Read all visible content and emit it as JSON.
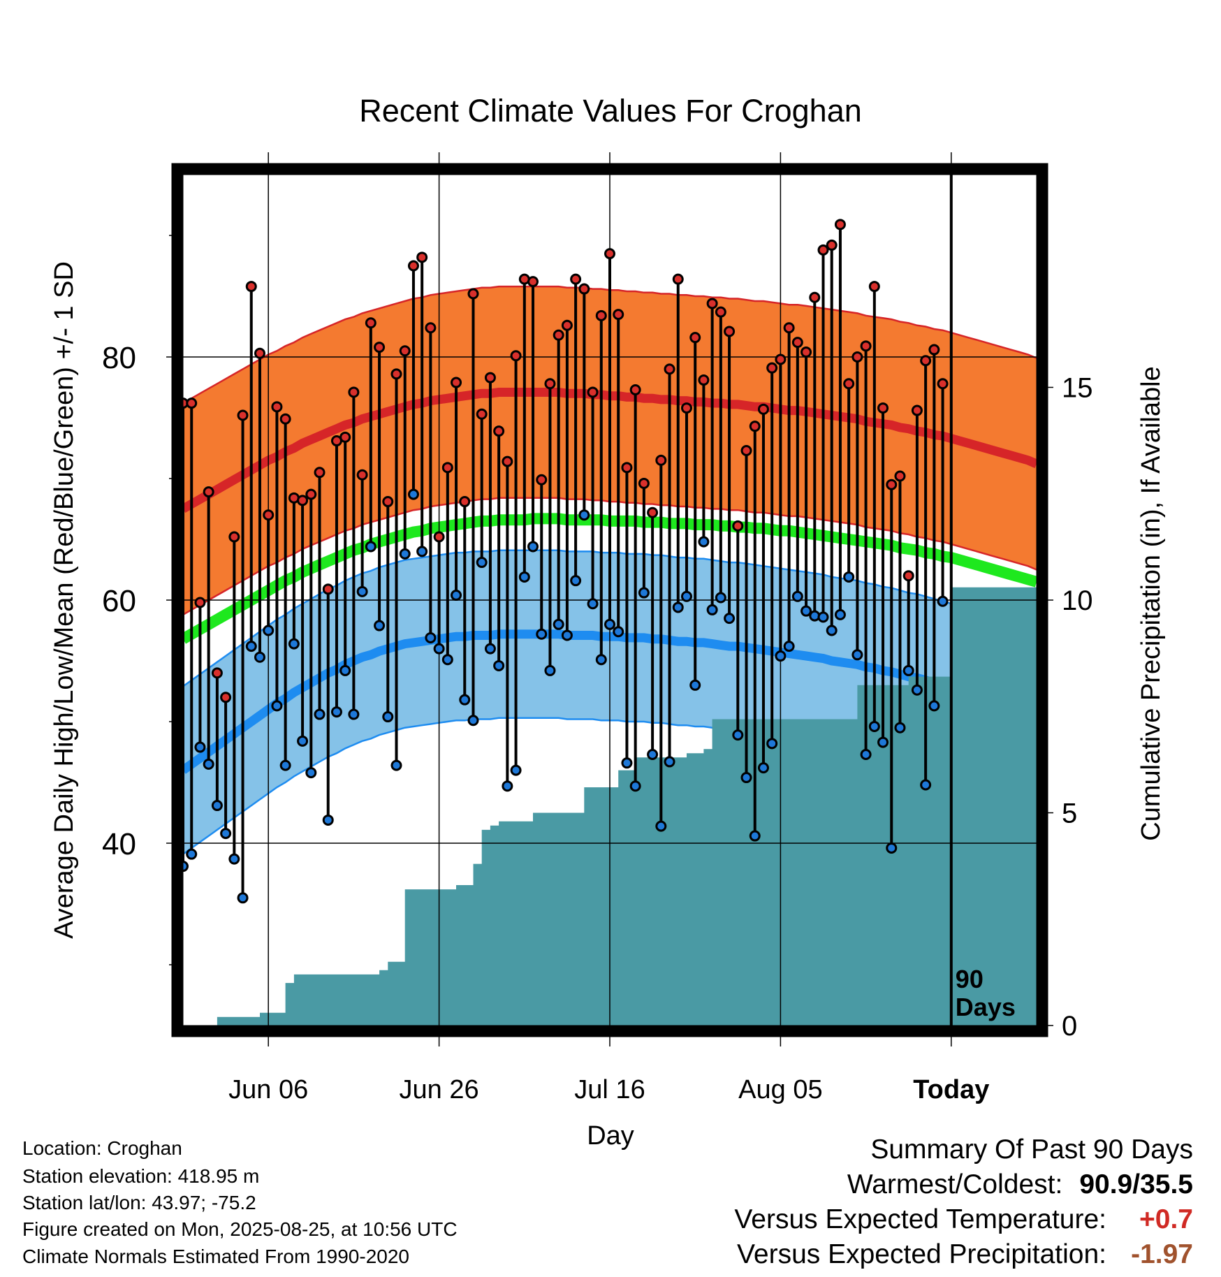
{
  "colors": {
    "high_band": "#f47a30",
    "high_mean": "#d62528",
    "mean_line": "#1ee81e",
    "low_band": "#85c2e8",
    "low_mean": "#1e8cf0",
    "high_dot": "#d9302c",
    "low_dot": "#1e78d8",
    "precip": "#4a9aa4",
    "warm_text": "#d02a24",
    "dry_text": "#a0522d"
  },
  "chart_data": {
    "type": "line",
    "title": "Recent Climate Values For Croghan",
    "xlabel": "Day",
    "ylabel": "Average Daily High/Low/Mean (Red/Blue/Green) +/- 1 SD",
    "y2label": "Cumulative Precipitation (in), If Available",
    "x_ticks": [
      "Jun 06",
      "Jun 26",
      "Jul 16",
      "Aug 05",
      "Today"
    ],
    "x_tick_days": [
      10,
      30,
      50,
      70,
      90
    ],
    "xlim": [
      0,
      100
    ],
    "ylim": [
      25,
      95
    ],
    "y_ticks": [
      40,
      60,
      80
    ],
    "y2lim": [
      0,
      20
    ],
    "y2_ticks": [
      0,
      5,
      10,
      15
    ],
    "today_label": "90 Days",
    "days": [
      0,
      1,
      2,
      3,
      4,
      5,
      6,
      7,
      8,
      9,
      10,
      11,
      12,
      13,
      14,
      15,
      16,
      17,
      18,
      19,
      20,
      21,
      22,
      23,
      24,
      25,
      26,
      27,
      28,
      29,
      30,
      31,
      32,
      33,
      34,
      35,
      36,
      37,
      38,
      39,
      40,
      41,
      42,
      43,
      44,
      45,
      46,
      47,
      48,
      49,
      50,
      51,
      52,
      53,
      54,
      55,
      56,
      57,
      58,
      59,
      60,
      61,
      62,
      63,
      64,
      65,
      66,
      67,
      68,
      69,
      70,
      71,
      72,
      73,
      74,
      75,
      76,
      77,
      78,
      79,
      80,
      81,
      82,
      83,
      84,
      85,
      86,
      87,
      88,
      89,
      90,
      91,
      92,
      93,
      94,
      95,
      96,
      97,
      98,
      99,
      100
    ],
    "normal_high_mean": [
      67.5,
      67.9,
      68.3,
      68.7,
      69.1,
      69.5,
      69.9,
      70.3,
      70.7,
      71.1,
      71.5,
      71.8,
      72.2,
      72.5,
      72.9,
      73.2,
      73.5,
      73.8,
      74.1,
      74.4,
      74.6,
      74.9,
      75.1,
      75.3,
      75.5,
      75.7,
      75.9,
      76.1,
      76.2,
      76.4,
      76.5,
      76.6,
      76.7,
      76.8,
      76.9,
      77.0,
      77.0,
      77.1,
      77.1,
      77.1,
      77.1,
      77.1,
      77.1,
      77.1,
      77.1,
      77.0,
      77.0,
      77.0,
      76.9,
      76.9,
      76.8,
      76.8,
      76.7,
      76.7,
      76.6,
      76.6,
      76.5,
      76.5,
      76.4,
      76.4,
      76.3,
      76.3,
      76.2,
      76.2,
      76.1,
      76.1,
      76.0,
      75.9,
      75.9,
      75.8,
      75.7,
      75.6,
      75.6,
      75.5,
      75.4,
      75.3,
      75.2,
      75.1,
      75.0,
      74.9,
      74.7,
      74.6,
      74.5,
      74.4,
      74.2,
      74.1,
      73.9,
      73.8,
      73.6,
      73.5,
      73.3,
      73.1,
      72.9,
      72.7,
      72.5,
      72.3,
      72.1,
      71.9,
      71.7,
      71.5,
      71.2
    ],
    "normal_high_sd": [
      8.7,
      8.7,
      8.7,
      8.7,
      8.7,
      8.7,
      8.7,
      8.7,
      8.7,
      8.7,
      8.7,
      8.7,
      8.7,
      8.7,
      8.7,
      8.7,
      8.7,
      8.7,
      8.7,
      8.7,
      8.7,
      8.7,
      8.7,
      8.7,
      8.7,
      8.7,
      8.7,
      8.7,
      8.7,
      8.7,
      8.7,
      8.7,
      8.7,
      8.7,
      8.7,
      8.7,
      8.7,
      8.7,
      8.7,
      8.7,
      8.7,
      8.7,
      8.7,
      8.7,
      8.7,
      8.7,
      8.7,
      8.7,
      8.7,
      8.7,
      8.7,
      8.7,
      8.7,
      8.7,
      8.7,
      8.7,
      8.7,
      8.7,
      8.7,
      8.7,
      8.7,
      8.7,
      8.7,
      8.7,
      8.7,
      8.7,
      8.7,
      8.7,
      8.7,
      8.7,
      8.7,
      8.7,
      8.7,
      8.7,
      8.7,
      8.7,
      8.7,
      8.7,
      8.7,
      8.7,
      8.7,
      8.7,
      8.7,
      8.7,
      8.7,
      8.7,
      8.7,
      8.7,
      8.7,
      8.7,
      8.7,
      8.7,
      8.7,
      8.7,
      8.7,
      8.7,
      8.7,
      8.7,
      8.7,
      8.7,
      8.7
    ],
    "normal_mean": [
      56.8,
      57.2,
      57.6,
      58.0,
      58.4,
      58.8,
      59.2,
      59.6,
      60.0,
      60.4,
      60.8,
      61.2,
      61.6,
      61.9,
      62.3,
      62.6,
      62.9,
      63.2,
      63.5,
      63.8,
      64.1,
      64.3,
      64.6,
      64.8,
      65.0,
      65.2,
      65.4,
      65.6,
      65.7,
      65.9,
      66.0,
      66.1,
      66.2,
      66.3,
      66.4,
      66.5,
      66.5,
      66.6,
      66.6,
      66.6,
      66.6,
      66.7,
      66.7,
      66.7,
      66.7,
      66.6,
      66.6,
      66.6,
      66.6,
      66.6,
      66.5,
      66.5,
      66.5,
      66.5,
      66.4,
      66.4,
      66.4,
      66.3,
      66.3,
      66.3,
      66.2,
      66.2,
      66.2,
      66.1,
      66.1,
      66.0,
      66.0,
      65.9,
      65.9,
      65.8,
      65.7,
      65.7,
      65.6,
      65.5,
      65.4,
      65.3,
      65.2,
      65.1,
      65.0,
      64.9,
      64.8,
      64.7,
      64.6,
      64.5,
      64.3,
      64.2,
      64.1,
      63.9,
      63.8,
      63.6,
      63.5,
      63.3,
      63.1,
      62.9,
      62.7,
      62.5,
      62.3,
      62.1,
      61.9,
      61.7,
      61.5
    ],
    "normal_low_mean": [
      46.0,
      46.5,
      47.0,
      47.5,
      48.0,
      48.5,
      49.0,
      49.5,
      50.0,
      50.5,
      51.0,
      51.5,
      51.9,
      52.4,
      52.8,
      53.2,
      53.6,
      54.0,
      54.3,
      54.7,
      55.0,
      55.3,
      55.5,
      55.8,
      56.0,
      56.2,
      56.4,
      56.5,
      56.6,
      56.7,
      56.8,
      56.9,
      57.0,
      57.0,
      57.1,
      57.1,
      57.1,
      57.2,
      57.2,
      57.2,
      57.2,
      57.2,
      57.2,
      57.2,
      57.2,
      57.1,
      57.1,
      57.1,
      57.1,
      57.0,
      57.0,
      57.0,
      56.9,
      56.9,
      56.9,
      56.8,
      56.8,
      56.7,
      56.6,
      56.6,
      56.5,
      56.5,
      56.4,
      56.3,
      56.2,
      56.2,
      56.1,
      56.0,
      55.9,
      55.8,
      55.7,
      55.6,
      55.5,
      55.4,
      55.3,
      55.2,
      55.0,
      54.9,
      54.8,
      54.7,
      54.5,
      54.4,
      54.2,
      54.1,
      53.9,
      53.7,
      53.6,
      53.4,
      53.2,
      53.0,
      52.8,
      52.6,
      52.4,
      52.2,
      52.0,
      51.8,
      51.6,
      51.4,
      51.2,
      51.0,
      50.8
    ],
    "normal_low_sd": [
      6.9,
      6.9,
      6.9,
      6.9,
      6.9,
      6.9,
      6.9,
      6.9,
      6.9,
      6.9,
      6.9,
      6.9,
      6.9,
      6.9,
      6.9,
      6.9,
      6.9,
      6.9,
      6.9,
      6.9,
      6.9,
      6.9,
      6.9,
      6.9,
      6.9,
      6.9,
      6.9,
      6.9,
      6.9,
      6.9,
      6.9,
      6.9,
      6.9,
      6.9,
      6.9,
      6.9,
      6.9,
      6.9,
      6.9,
      6.9,
      6.9,
      6.9,
      6.9,
      6.9,
      6.9,
      6.9,
      6.9,
      6.9,
      6.9,
      6.9,
      6.9,
      6.9,
      6.9,
      6.9,
      6.9,
      6.9,
      6.9,
      6.9,
      6.9,
      6.9,
      6.9,
      6.9,
      6.9,
      6.9,
      6.9,
      6.9,
      6.9,
      6.9,
      6.9,
      6.9,
      6.9,
      6.9,
      6.9,
      6.9,
      6.9,
      6.9,
      6.9,
      6.9,
      6.9,
      6.9,
      6.9,
      6.9,
      6.9,
      6.9,
      6.9,
      6.9,
      6.9,
      6.9,
      6.9,
      6.9,
      6.9,
      6.9,
      6.9,
      6.9,
      6.9,
      6.9,
      6.9,
      6.9,
      6.9,
      6.9,
      6.9
    ],
    "obs_days": [
      0,
      1,
      2,
      3,
      4,
      5,
      6,
      7,
      8,
      9,
      10,
      11,
      12,
      13,
      14,
      15,
      16,
      17,
      18,
      19,
      20,
      21,
      22,
      23,
      24,
      25,
      26,
      27,
      28,
      29,
      30,
      31,
      32,
      33,
      34,
      35,
      36,
      37,
      38,
      39,
      40,
      41,
      42,
      43,
      44,
      45,
      46,
      47,
      48,
      49,
      50,
      51,
      52,
      53,
      54,
      55,
      56,
      57,
      58,
      59,
      60,
      61,
      62,
      63,
      64,
      65,
      66,
      67,
      68,
      69,
      70,
      71,
      72,
      73,
      74,
      75,
      76,
      77,
      78,
      79,
      80,
      81,
      82,
      83,
      84,
      85,
      86,
      87,
      88,
      89
    ],
    "obs_high": [
      76.2,
      76.2,
      59.8,
      68.9,
      54.0,
      52.0,
      65.2,
      75.2,
      85.8,
      80.3,
      67.0,
      75.9,
      74.9,
      68.4,
      68.2,
      68.7,
      70.5,
      60.9,
      73.1,
      73.4,
      77.1,
      70.3,
      82.8,
      80.8,
      68.1,
      78.6,
      80.5,
      87.5,
      88.2,
      82.4,
      65.2,
      70.9,
      77.9,
      68.1,
      85.2,
      75.3,
      78.3,
      73.9,
      71.4,
      80.1,
      86.4,
      86.2,
      69.9,
      77.8,
      81.8,
      82.6,
      86.4,
      85.6,
      77.1,
      83.4,
      88.5,
      83.5,
      70.9,
      77.3,
      69.6,
      67.2,
      71.5,
      79.0,
      86.4,
      75.8,
      81.6,
      78.1,
      84.4,
      83.7,
      82.1,
      66.1,
      72.3,
      74.3,
      75.7,
      79.1,
      79.8,
      82.4,
      81.2,
      80.4,
      84.9,
      88.8,
      89.2,
      90.9,
      77.8,
      80.0,
      80.9,
      85.8,
      75.8,
      69.5,
      70.2,
      62.0,
      75.6,
      79.7,
      80.6,
      77.8
    ],
    "obs_low": [
      38.1,
      39.1,
      47.9,
      46.5,
      43.1,
      40.8,
      38.7,
      35.5,
      56.2,
      55.3,
      57.5,
      51.3,
      46.4,
      56.4,
      48.4,
      45.8,
      50.6,
      41.9,
      50.8,
      54.2,
      50.6,
      60.7,
      64.4,
      57.9,
      50.4,
      46.4,
      63.8,
      68.7,
      64.0,
      56.9,
      56.0,
      55.1,
      60.4,
      51.8,
      50.1,
      63.1,
      56.0,
      54.6,
      44.7,
      46.0,
      61.9,
      64.4,
      57.2,
      54.2,
      58.0,
      57.1,
      61.6,
      67.0,
      59.7,
      55.1,
      58.0,
      57.4,
      46.6,
      44.7,
      60.6,
      47.3,
      41.4,
      46.7,
      59.4,
      60.3,
      53.0,
      64.8,
      59.2,
      60.2,
      58.5,
      48.9,
      45.4,
      40.6,
      46.2,
      48.2,
      55.4,
      56.2,
      60.3,
      59.1,
      58.7,
      58.6,
      57.5,
      58.8,
      61.9,
      55.5,
      47.3,
      49.6,
      48.3,
      39.6,
      49.5,
      54.2,
      52.6,
      44.8,
      51.3,
      59.9
    ],
    "obs_precip": [
      0.0,
      0.0,
      0.0,
      0.0,
      0.2,
      0.2,
      0.2,
      0.2,
      0.2,
      0.3,
      0.3,
      0.3,
      1.0,
      1.2,
      1.2,
      1.2,
      1.2,
      1.2,
      1.2,
      1.2,
      1.2,
      1.2,
      1.2,
      1.3,
      1.5,
      1.5,
      3.2,
      3.2,
      3.2,
      3.2,
      3.2,
      3.2,
      3.3,
      3.3,
      3.8,
      4.6,
      4.7,
      4.8,
      4.8,
      4.8,
      4.8,
      5.0,
      5.0,
      5.0,
      5.0,
      5.0,
      5.0,
      5.6,
      5.6,
      5.6,
      5.6,
      6.0,
      6.0,
      6.3,
      6.3,
      6.3,
      6.3,
      6.3,
      6.3,
      6.4,
      6.4,
      6.5,
      7.2,
      7.2,
      7.2,
      7.2,
      7.2,
      7.2,
      7.2,
      7.2,
      7.2,
      7.2,
      7.2,
      7.2,
      7.2,
      7.2,
      7.2,
      7.2,
      7.2,
      8.0,
      8.0,
      8.0,
      8.0,
      8.0,
      8.0,
      8.2,
      8.2,
      8.2,
      8.2,
      8.2,
      10.3,
      10.3,
      10.3,
      10.3,
      10.3,
      10.3,
      10.3,
      10.3,
      10.3,
      10.3,
      10.3
    ]
  },
  "info": {
    "location": "Location: Croghan",
    "elevation": "Station elevation: 418.95 m",
    "latlon": "Station lat/lon: 43.97; -75.2",
    "created": "Figure created on Mon, 2025-08-25, at 10:56 UTC",
    "normals": "Climate Normals Estimated From 1990-2020"
  },
  "summary": {
    "heading": "Summary Of Past 90 Days",
    "warmest_label": "Warmest/Coldest:",
    "warmest_value": "90.9/35.5",
    "temp_label": "Versus Expected Temperature:",
    "temp_value": "+0.7",
    "precip_label": "Versus Expected Precipitation:",
    "precip_value": "-1.97"
  }
}
